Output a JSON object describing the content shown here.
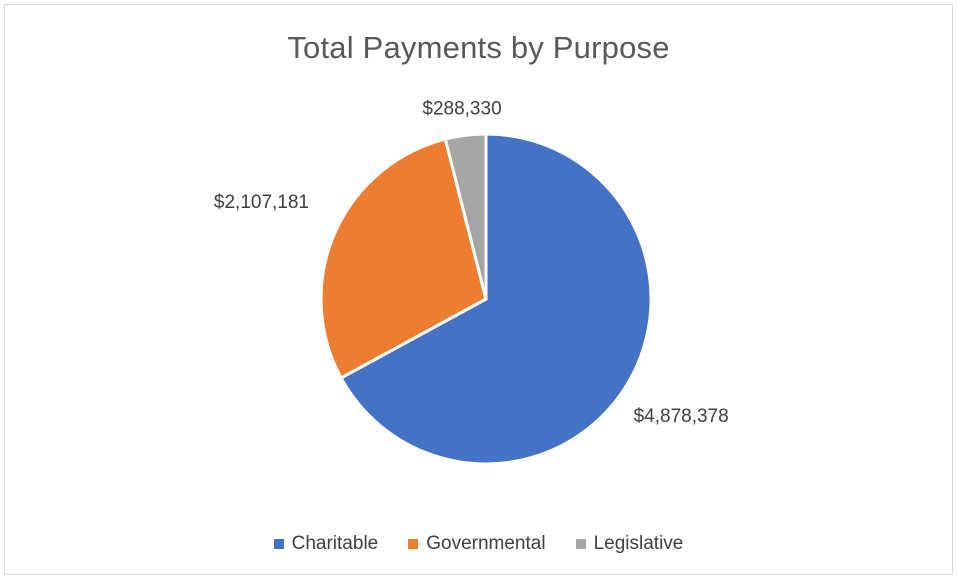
{
  "chart_data": {
    "type": "pie",
    "title": "Total Payments by Purpose",
    "categories": [
      "Charitable",
      "Governmental",
      "Legislative"
    ],
    "values": [
      4878378,
      2107181,
      288330
    ],
    "data_labels": [
      "$4,878,378",
      "$2,107,181",
      "$288,330"
    ],
    "colors": [
      "#4472C4",
      "#ED7D31",
      "#A5A5A5"
    ],
    "legend_position": "bottom"
  }
}
